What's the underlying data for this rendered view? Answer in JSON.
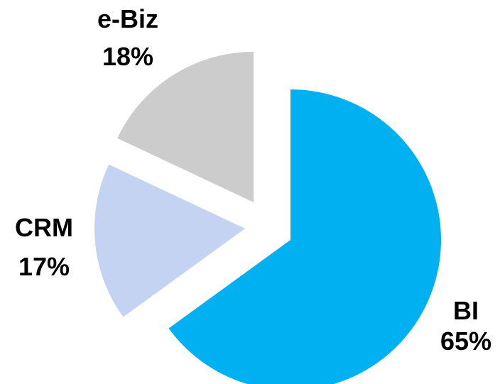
{
  "chart_data": {
    "type": "pie",
    "exploded": true,
    "start_angle": "12 o'clock",
    "direction": "clockwise",
    "slices": [
      {
        "name": "BI",
        "value": 65,
        "label": "65%",
        "color": "#00b0f0"
      },
      {
        "name": "CRM",
        "value": 17,
        "label": "17%",
        "color": "#c5d3f3"
      },
      {
        "name": "e-Biz",
        "value": 18,
        "label": "18%",
        "color": "#cccccc"
      }
    ]
  }
}
